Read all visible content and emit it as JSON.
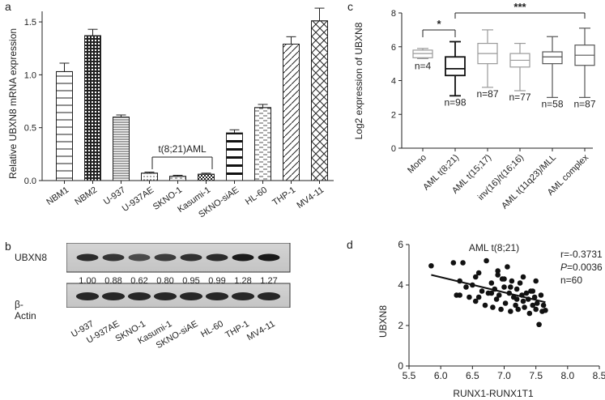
{
  "panels": {
    "a": "a",
    "b": "b",
    "c": "c",
    "d": "d"
  },
  "chart_data": [
    {
      "id": "a",
      "type": "bar",
      "title": "",
      "ylabel": "Relative UBXN8 mRNA expression",
      "xlabel": "",
      "ylim": [
        0,
        1.6
      ],
      "yticks": [
        "0.0",
        "0.5",
        "1.0",
        "1.5"
      ],
      "ytick_values": [
        0,
        0.5,
        1.0,
        1.5
      ],
      "categories": [
        "NBM1",
        "NBM2",
        "U-937",
        "U-937AE",
        "SKNO-1",
        "Kasumi-1",
        "SKNO-siAE",
        "HL-60",
        "THP-1",
        "MV4-11"
      ],
      "values": [
        1.03,
        1.37,
        0.6,
        0.07,
        0.04,
        0.06,
        0.45,
        0.69,
        1.29,
        1.51
      ],
      "errors": [
        0.08,
        0.06,
        0.02,
        0.01,
        0.01,
        0.01,
        0.03,
        0.03,
        0.07,
        0.12
      ],
      "patterns": [
        "hlines",
        "grid",
        "hlines-dense",
        "dots",
        "sparse",
        "checker",
        "thick-hlines",
        "dashes",
        "diag",
        "cross"
      ],
      "annotation": "t(8;21)AML"
    },
    {
      "id": "c",
      "type": "box",
      "ylabel": "Log2 expression of UBXN8",
      "ylim": [
        0,
        8
      ],
      "yticks": [
        "0",
        "2",
        "4",
        "6",
        "8"
      ],
      "ytick_values": [
        0,
        2,
        4,
        6,
        8
      ],
      "categories": [
        "Mono",
        "AML t(8;21)",
        "AML t(15;17)",
        "inv(16)/t(16;16)",
        "AML t(11q23)/MLL",
        "AML complex"
      ],
      "boxes": [
        {
          "min": 5.3,
          "q1": 5.35,
          "median": 5.6,
          "q3": 5.8,
          "max": 5.9,
          "n": "n=4"
        },
        {
          "min": 3.1,
          "q1": 4.3,
          "median": 4.7,
          "q3": 5.4,
          "max": 6.3,
          "n": "n=98"
        },
        {
          "min": 3.6,
          "q1": 5.0,
          "median": 5.6,
          "q3": 6.2,
          "max": 7.0,
          "n": "n=87"
        },
        {
          "min": 3.4,
          "q1": 4.8,
          "median": 5.2,
          "q3": 5.6,
          "max": 6.2,
          "n": "n=77"
        },
        {
          "min": 3.0,
          "q1": 5.0,
          "median": 5.4,
          "q3": 5.7,
          "max": 6.6,
          "n": "n=58"
        },
        {
          "min": 3.0,
          "q1": 4.9,
          "median": 5.5,
          "q3": 6.1,
          "max": 7.1,
          "n": "n=87"
        }
      ],
      "significance": [
        {
          "from": 0,
          "to": 1,
          "label": "*"
        },
        {
          "from": 1,
          "to": 5,
          "label": "***"
        }
      ]
    },
    {
      "id": "d",
      "type": "scatter",
      "title": "AML t(8;21)",
      "xlabel": "RUNX1-RUNX1T1",
      "ylabel": "UBXN8",
      "xlim": [
        5.5,
        8.5
      ],
      "ylim": [
        0,
        6
      ],
      "xticks": [
        "5.5",
        "6.0",
        "6.5",
        "7.0",
        "7.5",
        "8.0",
        "8.5"
      ],
      "xtick_values": [
        5.5,
        6.0,
        6.5,
        7.0,
        7.5,
        8.0,
        8.5
      ],
      "yticks": [
        "0",
        "2",
        "4",
        "6"
      ],
      "ytick_values": [
        0,
        2,
        4,
        6
      ],
      "stats": {
        "r": "r=-0.3731",
        "p_label": "P",
        "p_value": "=0.0036",
        "n": "n=60"
      },
      "fit": {
        "x": [
          5.85,
          7.65
        ],
        "y": [
          4.5,
          3.15
        ]
      },
      "x": [
        5.85,
        6.2,
        6.25,
        6.3,
        6.35,
        6.4,
        6.45,
        6.5,
        6.55,
        6.6,
        6.65,
        6.7,
        6.72,
        6.75,
        6.8,
        6.82,
        6.85,
        6.88,
        6.9,
        6.92,
        6.95,
        6.97,
        7.0,
        7.02,
        7.05,
        7.08,
        7.1,
        7.12,
        7.15,
        7.18,
        7.2,
        7.22,
        7.25,
        7.28,
        7.3,
        7.32,
        7.35,
        7.38,
        7.4,
        7.42,
        7.45,
        7.48,
        7.5,
        7.52,
        7.55,
        7.58,
        7.6,
        7.62,
        7.65,
        6.3,
        6.6,
        6.9,
        7.1,
        7.3,
        7.45,
        6.55,
        6.8,
        7.0,
        7.2,
        7.5
      ],
      "y": [
        4.95,
        5.1,
        3.5,
        4.2,
        5.1,
        3.9,
        3.4,
        4.0,
        3.2,
        4.6,
        3.7,
        3.0,
        5.2,
        3.6,
        4.1,
        2.9,
        3.8,
        3.3,
        4.7,
        3.5,
        2.8,
        4.3,
        3.9,
        3.1,
        4.9,
        3.6,
        2.7,
        4.2,
        3.4,
        3.0,
        3.8,
        2.8,
        4.1,
        3.5,
        3.2,
        2.9,
        3.6,
        3.3,
        2.6,
        3.7,
        3.0,
        3.4,
        2.8,
        3.1,
        2.05,
        3.5,
        2.7,
        3.0,
        2.75,
        3.5,
        3.4,
        4.5,
        3.9,
        4.4,
        3.7,
        4.4,
        3.6,
        4.3,
        3.3,
        4.2
      ]
    }
  ],
  "blot": {
    "rows": [
      {
        "label": "UBXN8",
        "values": [
          "1.00",
          "0.88",
          "0.62",
          "0.80",
          "0.95",
          "0.99",
          "1.28",
          "1.27"
        ]
      },
      {
        "label": "β-Actin"
      }
    ],
    "lanes": [
      "U-937",
      "U-937AE",
      "SKNO-1",
      "Kasumi-1",
      "SKNO-siAE",
      "HL-60",
      "THP-1",
      "MV4-11"
    ]
  }
}
